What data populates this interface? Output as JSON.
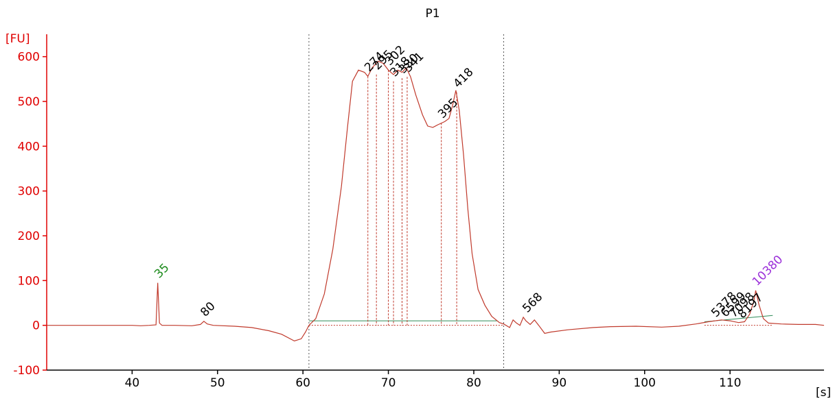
{
  "chart_data": {
    "type": "line",
    "title": "P1",
    "ylabel": "[FU]",
    "xlabel": "[s]",
    "xlim": [
      30,
      121
    ],
    "ylim": [
      -100,
      650
    ],
    "x_ticks": [
      40,
      50,
      60,
      70,
      80,
      90,
      100,
      110
    ],
    "y_ticks": [
      -100,
      0,
      100,
      200,
      300,
      400,
      500,
      600
    ],
    "grid": false,
    "colors": {
      "trace": "#c0392b",
      "axis": "#e00000",
      "marker_label": "#1a8a1a",
      "upper_marker_label": "#9b30d9",
      "peak_label": "#000000",
      "region_line": "#2e8b57",
      "region_boundary": "#555555",
      "peak_line": "#c0392b"
    },
    "region": {
      "start": 60.7,
      "end": 83.5
    },
    "series": [
      {
        "points": [
          [
            30,
            0
          ],
          [
            40,
            0
          ],
          [
            41,
            -1
          ],
          [
            42,
            0
          ],
          [
            42.8,
            1
          ],
          [
            43.0,
            95
          ],
          [
            43.2,
            5
          ],
          [
            43.5,
            0
          ],
          [
            45,
            0
          ],
          [
            47,
            -1
          ],
          [
            48,
            2
          ],
          [
            48.4,
            9
          ],
          [
            48.8,
            3
          ],
          [
            49.5,
            0
          ],
          [
            52,
            -2
          ],
          [
            54,
            -5
          ],
          [
            56,
            -12
          ],
          [
            57.5,
            -20
          ],
          [
            59,
            -35
          ],
          [
            59.8,
            -30
          ],
          [
            60.3,
            -15
          ],
          [
            60.7,
            0
          ],
          [
            61.5,
            15
          ],
          [
            62.5,
            70
          ],
          [
            63.5,
            170
          ],
          [
            64.5,
            310
          ],
          [
            65.2,
            440
          ],
          [
            65.8,
            545
          ],
          [
            66.5,
            570
          ],
          [
            67.2,
            565
          ],
          [
            67.6,
            556
          ],
          [
            68.1,
            575
          ],
          [
            68.8,
            590
          ],
          [
            69.4,
            585
          ],
          [
            70.0,
            570
          ],
          [
            70.6,
            560
          ],
          [
            71.1,
            570
          ],
          [
            71.6,
            565
          ],
          [
            72.1,
            575
          ],
          [
            72.6,
            555
          ],
          [
            73.2,
            515
          ],
          [
            74.0,
            470
          ],
          [
            74.6,
            445
          ],
          [
            75.2,
            442
          ],
          [
            75.8,
            448
          ],
          [
            76.6,
            455
          ],
          [
            77.1,
            462
          ],
          [
            77.5,
            490
          ],
          [
            77.9,
            525
          ],
          [
            78.3,
            480
          ],
          [
            78.8,
            380
          ],
          [
            79.3,
            260
          ],
          [
            79.8,
            160
          ],
          [
            80.5,
            80
          ],
          [
            81.3,
            45
          ],
          [
            82.1,
            20
          ],
          [
            83.0,
            6
          ],
          [
            83.5,
            3
          ],
          [
            84.2,
            -5
          ],
          [
            84.6,
            12
          ],
          [
            85.0,
            5
          ],
          [
            85.4,
            0
          ],
          [
            85.8,
            18
          ],
          [
            86.1,
            10
          ],
          [
            86.6,
            2
          ],
          [
            87.1,
            12
          ],
          [
            87.6,
            0
          ],
          [
            88.3,
            -18
          ],
          [
            89,
            -15
          ],
          [
            91,
            -10
          ],
          [
            94,
            -5
          ],
          [
            96,
            -3
          ],
          [
            99,
            -2
          ],
          [
            102,
            -4
          ],
          [
            104,
            -2
          ],
          [
            106,
            3
          ],
          [
            107.5,
            8
          ],
          [
            109,
            12
          ],
          [
            110,
            10
          ],
          [
            111,
            6
          ],
          [
            111.7,
            8
          ],
          [
            112.3,
            25
          ],
          [
            112.8,
            55
          ],
          [
            113.0,
            78
          ],
          [
            113.4,
            45
          ],
          [
            113.9,
            15
          ],
          [
            114.5,
            5
          ],
          [
            116,
            3
          ],
          [
            118,
            2
          ],
          [
            120,
            2
          ],
          [
            121,
            0
          ]
        ]
      }
    ],
    "peaks": [
      {
        "label": "35",
        "x": 43.0,
        "y": 95,
        "kind": "marker",
        "line": false
      },
      {
        "label": "80",
        "x": 48.4,
        "y": 9,
        "kind": "peak",
        "line": false
      },
      {
        "label": "274",
        "x": 67.6,
        "y": 556,
        "kind": "peak",
        "line": true
      },
      {
        "label": "295",
        "x": 68.6,
        "y": 560,
        "kind": "peak",
        "line": true
      },
      {
        "label": "302",
        "x": 70.0,
        "y": 570,
        "kind": "peak",
        "line": true
      },
      {
        "label": "318",
        "x": 70.6,
        "y": 545,
        "kind": "peak",
        "line": true
      },
      {
        "label": "330",
        "x": 71.6,
        "y": 552,
        "kind": "peak",
        "line": true
      },
      {
        "label": "341",
        "x": 72.2,
        "y": 555,
        "kind": "peak",
        "line": true
      },
      {
        "label": "395",
        "x": 76.2,
        "y": 452,
        "kind": "peak",
        "line": true
      },
      {
        "label": "418",
        "x": 78.0,
        "y": 520,
        "kind": "peak",
        "line": true
      },
      {
        "label": "568",
        "x": 86.1,
        "y": 18,
        "kind": "peak",
        "line": false
      },
      {
        "label": "5378",
        "x": 108.2,
        "y": 8,
        "kind": "peak",
        "line": false
      },
      {
        "label": "6599",
        "x": 109.3,
        "y": 8,
        "kind": "peak",
        "line": false
      },
      {
        "label": "7098",
        "x": 110.3,
        "y": 7,
        "kind": "peak",
        "line": false
      },
      {
        "label": "8197",
        "x": 111.3,
        "y": 5,
        "kind": "peak",
        "line": false
      },
      {
        "label": "10380",
        "x": 113.0,
        "y": 78,
        "kind": "upper_marker",
        "line": false
      }
    ]
  }
}
